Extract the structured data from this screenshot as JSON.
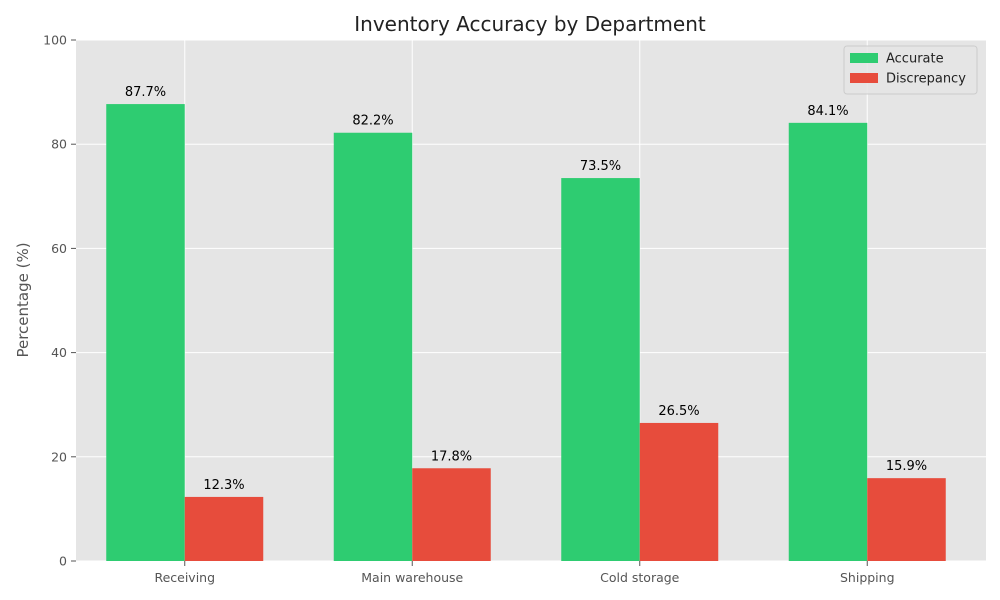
{
  "chart_data": {
    "type": "bar",
    "title": "Inventory Accuracy by Department",
    "xlabel": "",
    "ylabel": "Percentage (%)",
    "ylim": [
      0,
      100
    ],
    "yticks": [
      0,
      20,
      40,
      60,
      80,
      100
    ],
    "grid": true,
    "legend_position": "top-right",
    "categories": [
      "Receiving",
      "Main warehouse",
      "Cold storage",
      "Shipping"
    ],
    "series": [
      {
        "name": "Accurate",
        "color": "#2ecc71",
        "values": [
          87.7,
          82.2,
          73.5,
          84.1
        ],
        "labels": [
          "87.7%",
          "82.2%",
          "73.5%",
          "84.1%"
        ]
      },
      {
        "name": "Discrepancy",
        "color": "#e74c3c",
        "values": [
          12.3,
          17.8,
          26.5,
          15.9
        ],
        "labels": [
          "12.3%",
          "17.8%",
          "26.5%",
          "15.9%"
        ]
      }
    ],
    "background_color": "#e5e5e5",
    "grid_color": "#ffffff"
  }
}
